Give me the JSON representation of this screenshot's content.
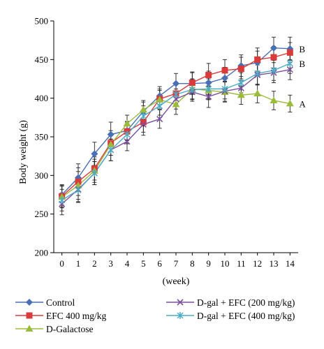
{
  "chart_data": {
    "type": "line",
    "xlabel": "(week)",
    "ylabel": "Body weight (g)",
    "x": [
      0,
      1,
      2,
      3,
      4,
      5,
      6,
      7,
      8,
      9,
      10,
      11,
      12,
      13,
      14
    ],
    "xlim": [
      -0.5,
      14.5
    ],
    "ylim": [
      200,
      500
    ],
    "yticks": [
      200,
      250,
      300,
      350,
      400,
      450,
      500
    ],
    "grid": false,
    "legend_position": "bottom",
    "series": [
      {
        "name": "Control",
        "color": "#4a6fb5",
        "marker": "diamond",
        "values": [
          275,
          297,
          328,
          353,
          358,
          383,
          403,
          419,
          419,
          420,
          426,
          442,
          446,
          465,
          464
        ],
        "errors": [
          13,
          18,
          15,
          16,
          12,
          12,
          12,
          13,
          14,
          15,
          14,
          14,
          15,
          14,
          15
        ]
      },
      {
        "name": "EFC 400 mg/kg",
        "color": "#d93a3a",
        "marker": "square",
        "values": [
          273,
          292,
          309,
          342,
          357,
          369,
          399,
          406,
          420,
          430,
          436,
          438,
          450,
          453,
          459
        ],
        "errors": [
          14,
          18,
          15,
          16,
          12,
          13,
          13,
          13,
          14,
          15,
          14,
          15,
          15,
          14,
          13
        ]
      },
      {
        "name": "D-Galactose",
        "color": "#9bbb3b",
        "marker": "triangle",
        "values": [
          272,
          287,
          306,
          340,
          367,
          385,
          398,
          392,
          412,
          410,
          408,
          404,
          406,
          397,
          393
        ],
        "errors": [
          14,
          18,
          15,
          14,
          11,
          12,
          12,
          13,
          13,
          12,
          13,
          12,
          12,
          12,
          11
        ]
      },
      {
        "name": "D-gal + EFC (200 mg/kg)",
        "color": "#7b4f9d",
        "marker": "x",
        "values": [
          263,
          282,
          303,
          333,
          344,
          366,
          373,
          399,
          408,
          402,
          409,
          413,
          430,
          433,
          437
        ],
        "errors": [
          14,
          16,
          15,
          14,
          12,
          14,
          12,
          13,
          12,
          14,
          13,
          12,
          13,
          13,
          13
        ]
      },
      {
        "name": "D-gal + EFC (400 mg/kg)",
        "color": "#4bacc6",
        "marker": "star",
        "values": [
          268,
          281,
          303,
          333,
          353,
          377,
          390,
          405,
          411,
          412,
          412,
          420,
          432,
          436,
          445
        ],
        "errors": [
          14,
          16,
          15,
          14,
          12,
          13,
          12,
          13,
          13,
          13,
          13,
          13,
          14,
          13,
          13
        ]
      }
    ],
    "annotations": [
      {
        "text": "B",
        "x": 14,
        "y": 464
      },
      {
        "text": "B",
        "x": 14,
        "y": 445
      },
      {
        "text": "A",
        "x": 14,
        "y": 393
      }
    ]
  }
}
